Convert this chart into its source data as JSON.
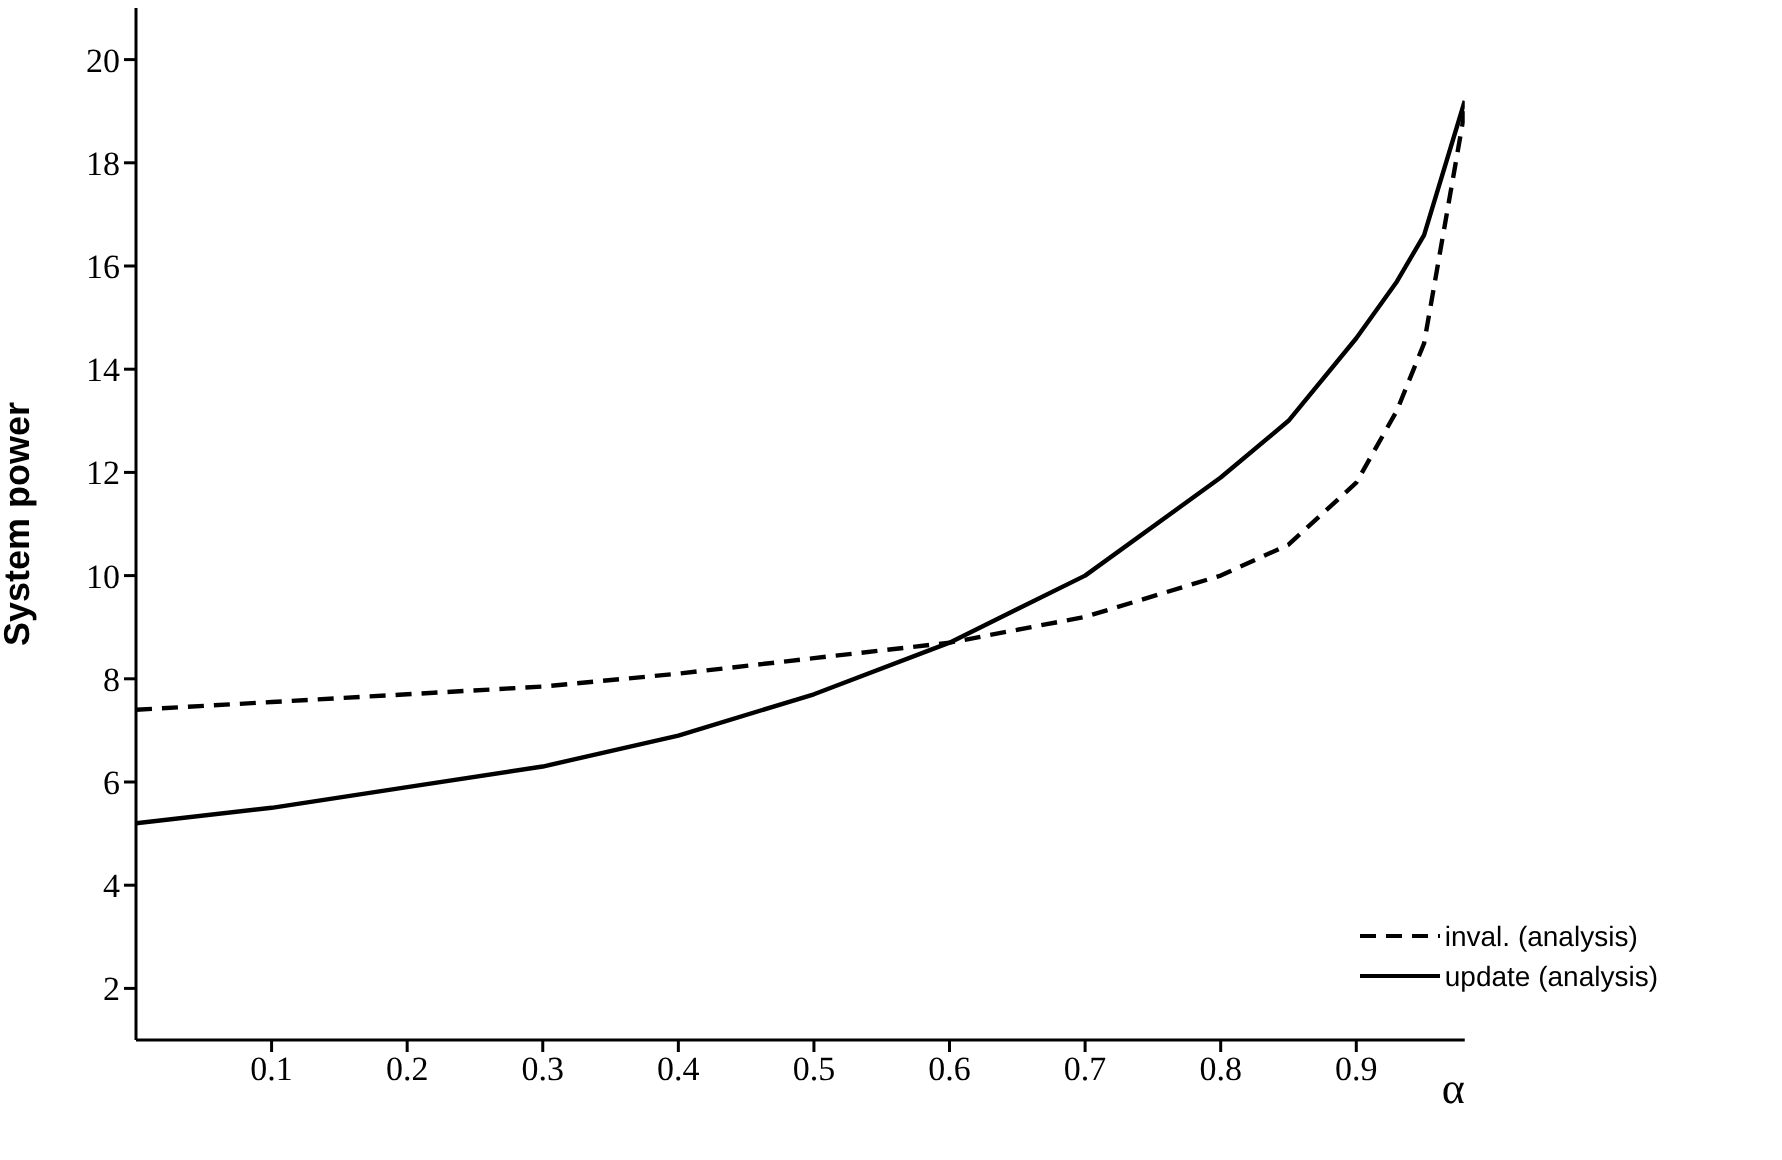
{
  "chart_data": {
    "type": "line",
    "ylabel": "System  power",
    "xlabel": "α",
    "x": [
      0,
      0.1,
      0.2,
      0.3,
      0.4,
      0.5,
      0.6,
      0.7,
      0.8,
      0.85,
      0.9,
      0.93,
      0.95,
      0.98
    ],
    "xlim": [
      0,
      0.98
    ],
    "xticks": [
      0.1,
      0.2,
      0.3,
      0.4,
      0.5,
      0.6,
      0.7,
      0.8,
      0.9
    ],
    "ylim": [
      1,
      21
    ],
    "yticks": [
      2,
      4,
      6,
      8,
      10,
      12,
      14,
      16,
      18,
      20
    ],
    "legend": "bottom right",
    "series": [
      {
        "name": "inval. (analysis)",
        "color": "#000000",
        "line_style": "dashed",
        "values": [
          7.4,
          7.55,
          7.7,
          7.85,
          8.1,
          8.4,
          8.7,
          9.2,
          10.0,
          10.6,
          11.8,
          13.2,
          14.5,
          19.0
        ]
      },
      {
        "name": "update (analysis)",
        "color": "#000000",
        "line_style": "solid",
        "values": [
          5.2,
          5.5,
          5.9,
          6.3,
          6.9,
          7.7,
          8.7,
          10.0,
          11.9,
          13.0,
          14.6,
          15.7,
          16.6,
          19.2
        ]
      }
    ]
  }
}
